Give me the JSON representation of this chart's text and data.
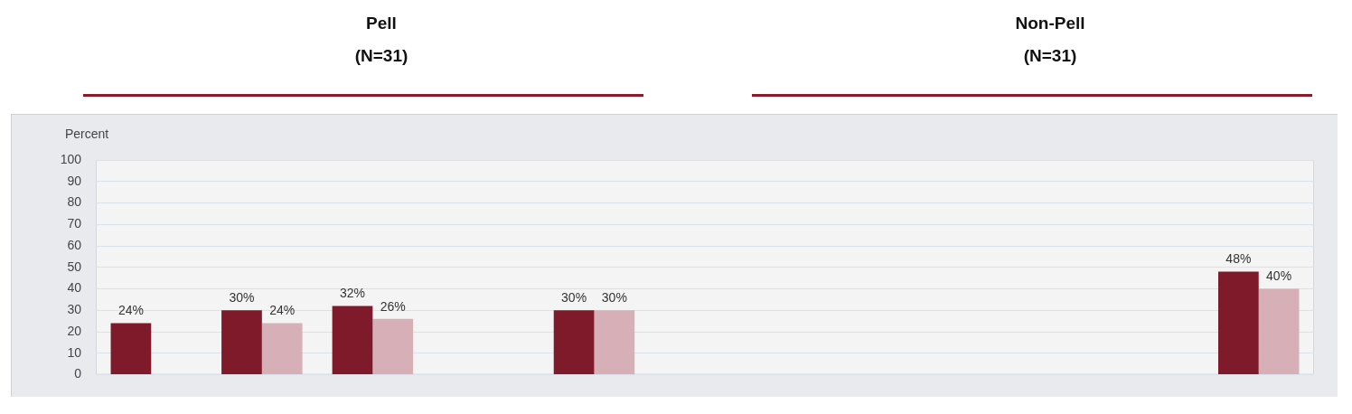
{
  "chart_data": {
    "type": "bar",
    "ylabel": "Percent",
    "annotations": [
      "Pell\n(N=31)",
      "Non-Pell\n(N=31)"
    ],
    "categories": [
      null,
      null,
      null,
      null,
      null,
      null,
      null,
      null,
      null,
      null,
      null
    ],
    "series": [
      {
        "color": "#7f1a2b",
        "values": [
          24,
          30,
          32,
          null,
          30,
          null,
          null,
          null,
          null,
          null,
          48
        ],
        "value_labels": [
          "24%",
          "30%",
          "32%",
          null,
          "30%",
          null,
          null,
          null,
          null,
          null,
          "48%"
        ]
      },
      {
        "color": "#d6b0b6",
        "values": [
          null,
          24,
          26,
          null,
          30,
          null,
          null,
          null,
          null,
          null,
          40
        ],
        "value_labels": [
          null,
          "24%",
          "26%",
          null,
          "30%",
          null,
          null,
          null,
          null,
          null,
          "40%"
        ]
      }
    ],
    "ylim": [
      0,
      100
    ],
    "yticks": [
      0,
      10,
      20,
      30,
      40,
      50,
      60,
      70,
      80,
      90,
      100
    ],
    "grid": "y",
    "legend": false
  }
}
